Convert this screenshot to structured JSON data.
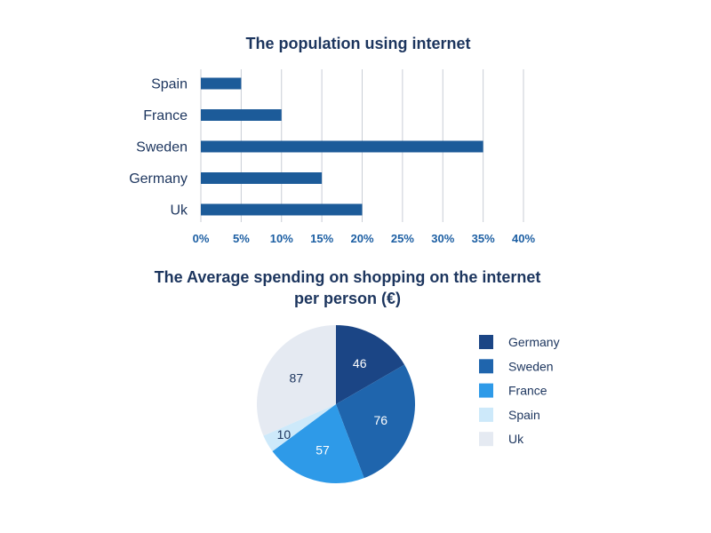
{
  "chart_data": [
    {
      "type": "bar",
      "orientation": "horizontal",
      "title": "The population using internet",
      "categories": [
        "Spain",
        "France",
        "Sweden",
        "Germany",
        "Uk"
      ],
      "values": [
        5,
        10,
        35,
        15,
        20
      ],
      "unit": "%",
      "xlim": [
        0,
        40
      ],
      "xticks": [
        "0%",
        "5%",
        "10%",
        "15%",
        "20%",
        "25%",
        "30%",
        "35%",
        "40%"
      ],
      "grid": true,
      "bar_color": "#1c5b99"
    },
    {
      "type": "pie",
      "title_lines": [
        "The Average spending on shopping on the internet",
        "per person (€)"
      ],
      "slices": [
        {
          "label": "Germany",
          "value": 46,
          "color": "#1b4585",
          "text_color": "#ffffff"
        },
        {
          "label": "Sweden",
          "value": 76,
          "color": "#1f65ad",
          "text_color": "#ffffff"
        },
        {
          "label": "France",
          "value": 57,
          "color": "#2e9ae8",
          "text_color": "#ffffff"
        },
        {
          "label": "Spain",
          "value": 10,
          "color": "#cde9fa",
          "text_color": "#1c355e"
        },
        {
          "label": "Uk",
          "value": 87,
          "color": "#e5eaf2",
          "text_color": "#1c355e"
        }
      ],
      "legend_position": "right"
    }
  ]
}
